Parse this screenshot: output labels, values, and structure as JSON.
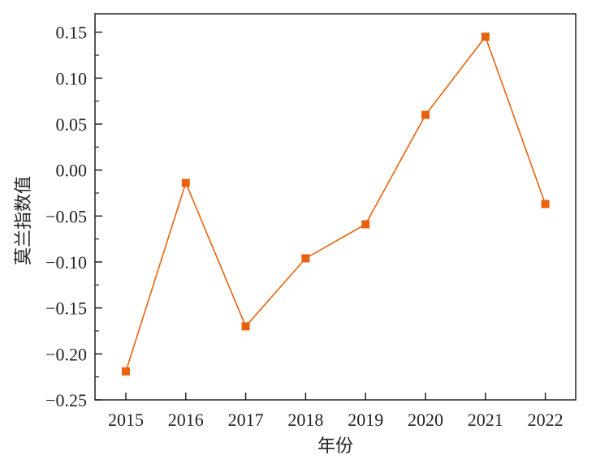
{
  "chart_data": {
    "type": "line",
    "xlabel": "年份",
    "ylabel": "莫兰指数值",
    "categories": [
      "2015",
      "2016",
      "2017",
      "2018",
      "2019",
      "2020",
      "2021",
      "2022"
    ],
    "series": [
      {
        "values": [
          -0.219,
          -0.014,
          -0.17,
          -0.096,
          -0.059,
          0.06,
          0.145,
          -0.037
        ]
      }
    ],
    "ylim": [
      -0.25,
      0.17
    ],
    "yticks": [
      0.15,
      0.1,
      0.05,
      0.0,
      -0.05,
      -0.1,
      -0.15,
      -0.2,
      -0.25
    ],
    "ytick_labels": [
      "0.15",
      "0.10",
      "0.05",
      "0.00",
      "−0.05",
      "−0.10",
      "−0.15",
      "−0.20",
      "−0.25"
    ],
    "grid": false,
    "legend": "none",
    "colors": {
      "series": "#E8620C",
      "axis": "#222222"
    }
  }
}
